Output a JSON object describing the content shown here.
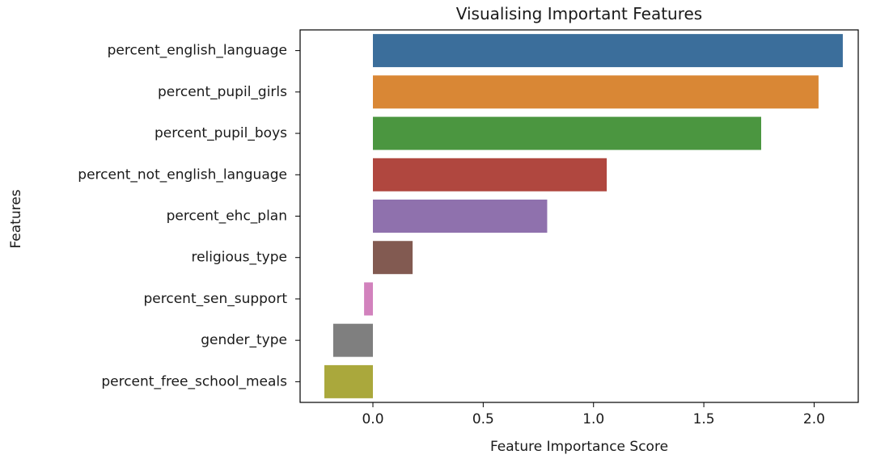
{
  "chart_data": {
    "type": "bar",
    "orientation": "horizontal",
    "title": "Visualising Important Features",
    "xlabel": "Feature Importance Score",
    "ylabel": "Features",
    "xlim": [
      -0.33,
      2.2
    ],
    "xticks": [
      0.0,
      0.5,
      1.0,
      1.5,
      2.0
    ],
    "xtick_labels": [
      "0.0",
      "0.5",
      "1.0",
      "1.5",
      "2.0"
    ],
    "grid": false,
    "categories": [
      "percent_english_language",
      "percent_pupil_girls",
      "percent_pupil_boys",
      "percent_not_english_language",
      "percent_ehc_plan",
      "religious_type",
      "percent_sen_support",
      "gender_type",
      "percent_free_school_meals"
    ],
    "values": [
      2.13,
      2.02,
      1.76,
      1.06,
      0.79,
      0.18,
      -0.04,
      -0.18,
      -0.22
    ],
    "colors": [
      "#3b6e9b",
      "#d98735",
      "#4b9640",
      "#b0473f",
      "#8f71ad",
      "#825a51",
      "#d282bd",
      "#7f7f7f",
      "#aaa83c"
    ]
  }
}
